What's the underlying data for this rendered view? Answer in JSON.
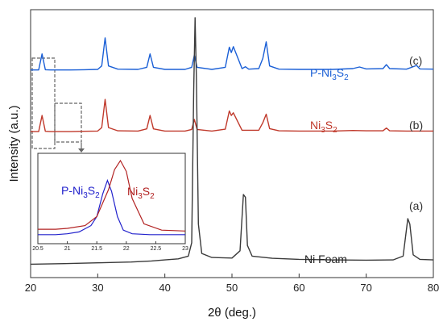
{
  "chart_data": {
    "type": "line",
    "title": "",
    "xlabel": "2θ (deg.)",
    "ylabel": "Intensity (a.u.)",
    "xlim": [
      20,
      80
    ],
    "xticks": [
      20,
      30,
      40,
      50,
      60,
      70,
      80
    ],
    "grid": false,
    "series": [
      {
        "id": "c",
        "name_main": "P-Ni",
        "name_sub1": "3",
        "name_mid": "S",
        "name_sub2": "2",
        "tag": "(c)",
        "color": "#1a5fd6",
        "baseline": 0.775,
        "x": [
          20,
          21.2,
          21.7,
          22.2,
          23,
          26,
          28,
          30,
          30.6,
          31.1,
          31.6,
          33,
          36,
          37.3,
          37.8,
          38.3,
          40,
          43,
          44,
          44.4,
          44.8,
          47,
          49,
          49.6,
          49.9,
          50.2,
          51.5,
          52,
          52.5,
          54,
          54.6,
          55.1,
          55.6,
          57,
          60,
          65,
          68,
          69,
          70,
          72.5,
          73,
          73.5,
          76,
          77.5,
          78,
          80
        ],
        "y": [
          0.775,
          0.775,
          0.835,
          0.776,
          0.775,
          0.775,
          0.776,
          0.777,
          0.79,
          0.895,
          0.79,
          0.778,
          0.777,
          0.785,
          0.835,
          0.785,
          0.777,
          0.777,
          0.785,
          0.83,
          0.785,
          0.777,
          0.785,
          0.86,
          0.84,
          0.862,
          0.78,
          0.787,
          0.778,
          0.78,
          0.818,
          0.88,
          0.79,
          0.778,
          0.777,
          0.777,
          0.78,
          0.786,
          0.779,
          0.78,
          0.795,
          0.78,
          0.778,
          0.792,
          0.779,
          0.778
        ]
      },
      {
        "id": "b",
        "name_main": "Ni",
        "name_sub1": "3",
        "name_mid": "S",
        "name_sub2": "2",
        "tag": "(b)",
        "color": "#c0392b",
        "baseline": 0.545,
        "x": [
          20,
          21.2,
          21.7,
          22.2,
          23,
          26,
          28,
          30,
          30.6,
          31.1,
          31.6,
          33,
          36,
          37.3,
          37.8,
          38.3,
          40,
          43,
          44,
          44.4,
          44.8,
          47,
          49,
          49.6,
          49.9,
          50.2,
          51.5,
          54,
          54.6,
          55.1,
          55.6,
          57,
          60,
          65,
          68,
          70,
          72.5,
          73,
          73.5,
          76,
          80
        ],
        "y": [
          0.545,
          0.545,
          0.605,
          0.546,
          0.545,
          0.545,
          0.546,
          0.547,
          0.56,
          0.665,
          0.56,
          0.548,
          0.547,
          0.555,
          0.605,
          0.555,
          0.547,
          0.547,
          0.553,
          0.59,
          0.553,
          0.547,
          0.554,
          0.622,
          0.605,
          0.615,
          0.55,
          0.55,
          0.578,
          0.61,
          0.556,
          0.548,
          0.547,
          0.547,
          0.549,
          0.548,
          0.548,
          0.558,
          0.548,
          0.547,
          0.547
        ]
      },
      {
        "id": "a",
        "name_main": "Ni Foam",
        "name_sub1": "",
        "name_mid": "",
        "name_sub2": "",
        "tag": "(a)",
        "color": "#3a3a3a",
        "baseline": 0.05,
        "x": [
          20,
          25,
          30,
          35,
          38,
          40,
          42,
          43.5,
          44,
          44.3,
          44.5,
          44.7,
          45,
          45.5,
          47,
          50,
          51.2,
          51.7,
          52,
          52.3,
          53,
          56,
          60,
          65,
          70,
          74,
          75.5,
          76.2,
          76.5,
          77,
          78,
          80
        ],
        "y": [
          0.05,
          0.052,
          0.055,
          0.058,
          0.062,
          0.066,
          0.07,
          0.08,
          0.13,
          0.7,
          0.97,
          0.75,
          0.2,
          0.09,
          0.075,
          0.073,
          0.1,
          0.31,
          0.3,
          0.12,
          0.08,
          0.072,
          0.068,
          0.066,
          0.065,
          0.066,
          0.08,
          0.22,
          0.2,
          0.085,
          0.068,
          0.066
        ]
      }
    ],
    "inset": {
      "xlim": [
        20.5,
        23
      ],
      "xticks": [
        "20.5",
        "21",
        "21.5",
        "22",
        "22.5",
        "23"
      ],
      "series": [
        {
          "name_main": "P-Ni",
          "name_sub1": "3",
          "name_mid": "S",
          "name_sub2": "2",
          "color": "#2222cc",
          "x": [
            20.5,
            20.8,
            21.0,
            21.2,
            21.4,
            21.5,
            21.6,
            21.68,
            21.75,
            21.85,
            21.95,
            22.1,
            22.4,
            23
          ],
          "y": [
            0.1,
            0.1,
            0.11,
            0.13,
            0.2,
            0.3,
            0.55,
            0.7,
            0.58,
            0.3,
            0.15,
            0.11,
            0.1,
            0.1
          ]
        },
        {
          "name_main": "Ni",
          "name_sub1": "3",
          "name_mid": "S",
          "name_sub2": "2",
          "color": "#b22222",
          "x": [
            20.5,
            20.8,
            21.0,
            21.3,
            21.5,
            21.7,
            21.8,
            21.9,
            22.0,
            22.1,
            22.3,
            22.6,
            23
          ],
          "y": [
            0.16,
            0.16,
            0.17,
            0.2,
            0.3,
            0.6,
            0.82,
            0.92,
            0.8,
            0.5,
            0.22,
            0.15,
            0.14
          ]
        }
      ]
    }
  }
}
